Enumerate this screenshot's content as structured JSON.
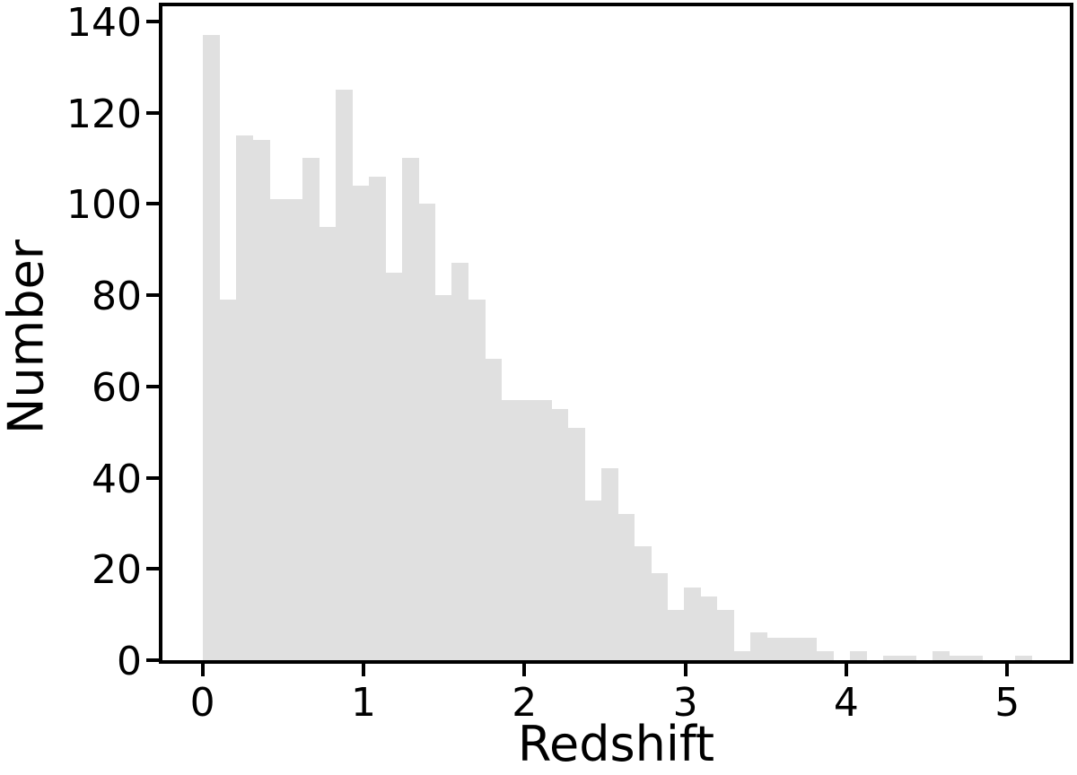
{
  "figure": {
    "background": "#ffffff",
    "bar_color": "#e0e0e0",
    "axis_color": "#000000"
  },
  "chart_data": {
    "type": "bar",
    "subtype": "histogram",
    "title": "",
    "xlabel": "Redshift",
    "ylabel": "Number",
    "grid": false,
    "legend_position": "none",
    "bin_start": 0.004,
    "bin_width": 0.103,
    "counts": [
      137,
      79,
      115,
      114,
      101,
      101,
      110,
      95,
      125,
      104,
      106,
      85,
      110,
      100,
      80,
      87,
      79,
      66,
      57,
      57,
      57,
      55,
      51,
      35,
      42,
      32,
      25,
      19,
      11,
      16,
      14,
      11,
      2,
      6,
      5,
      5,
      5,
      2,
      0,
      2,
      0,
      1,
      1,
      0,
      2,
      1,
      1,
      0,
      0,
      1
    ],
    "x_ticks": [
      0,
      1,
      2,
      3,
      4,
      5
    ],
    "y_ticks": [
      0,
      20,
      40,
      60,
      80,
      100,
      120,
      140
    ],
    "xlim": [
      -0.249,
      5.389
    ],
    "ylim": [
      0,
      143.3
    ]
  }
}
